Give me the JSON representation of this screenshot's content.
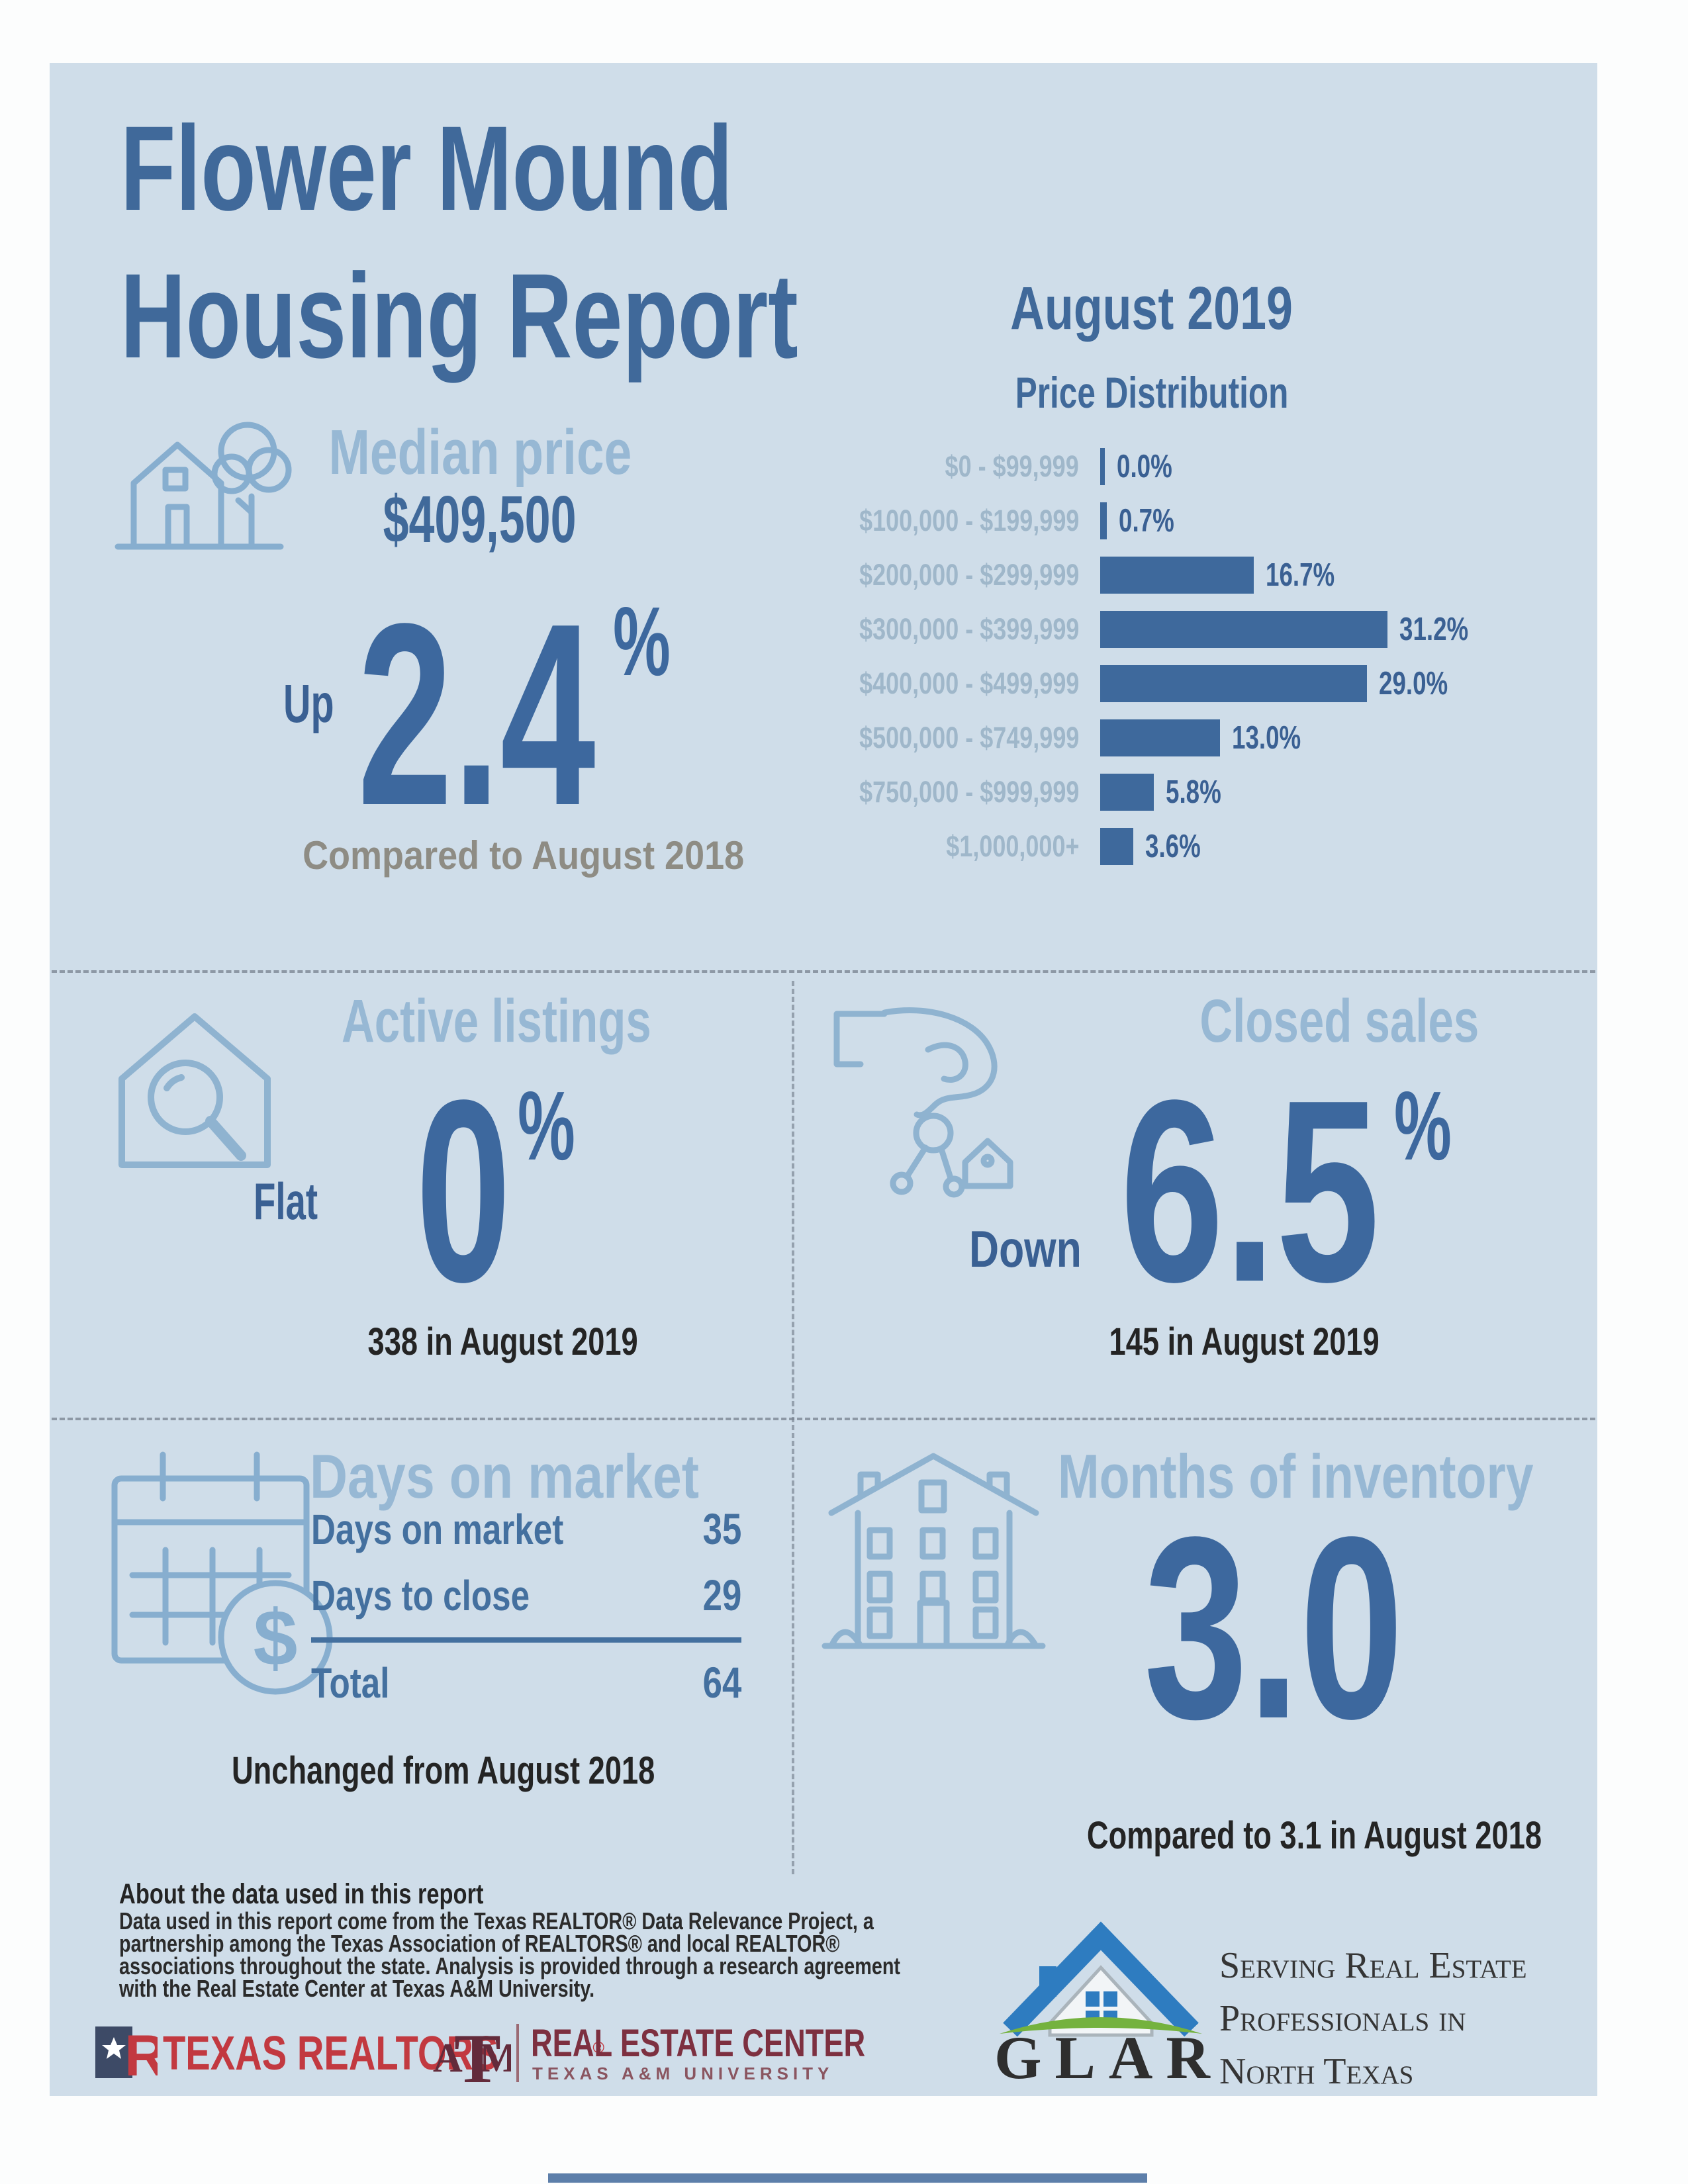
{
  "colors": {
    "panel_bg": "#cfdde9",
    "title_blue": "#40699a",
    "header_light_blue": "#97b8d4",
    "bar_blue": "#3e699c",
    "value_blue": "#3a6093",
    "table_blue": "#44709f",
    "dark_text": "#242424",
    "gray_text": "#8e8c84",
    "realtor_red": "#c23940",
    "am_maroon": "#7d3040",
    "glar_blue": "#2e7cc0",
    "glar_green": "#74b23e"
  },
  "title": {
    "line1": "Flower Mound",
    "line2": "Housing Report"
  },
  "report": {
    "month": "August 2019",
    "chart_title": "Price Distribution"
  },
  "chart_data": {
    "type": "bar",
    "orientation": "horizontal",
    "title": "Price Distribution",
    "subtitle": "August 2019",
    "categories": [
      "$0 - $99,999",
      "$100,000 - $199,999",
      "$200,000 - $299,999",
      "$300,000 - $399,999",
      "$400,000 - $499,999",
      "$500,000 - $749,999",
      "$750,000 - $999,999",
      "$1,000,000+"
    ],
    "values": [
      0.0,
      0.7,
      16.7,
      31.2,
      29.0,
      13.0,
      5.8,
      3.6
    ],
    "value_labels": [
      "0.0%",
      "0.7%",
      "16.7%",
      "31.2%",
      "29.0%",
      "13.0%",
      "5.8%",
      "3.6%"
    ],
    "unit": "%",
    "xlim": [
      0,
      35
    ],
    "grid": false,
    "legend": "none",
    "bar_color": "#3e699c"
  },
  "median_price": {
    "label": "Median price",
    "value": "$409,500",
    "direction": "Up",
    "change": "2.4",
    "percent_sign": "%",
    "compare": "Compared to August 2018"
  },
  "active_listings": {
    "label": "Active listings",
    "direction": "Flat",
    "change": "0",
    "percent_sign": "%",
    "count": "338 in August 2019"
  },
  "closed_sales": {
    "label": "Closed sales",
    "direction": "Down",
    "change": "6.5",
    "percent_sign": "%",
    "count": "145 in August 2019"
  },
  "days_on_market": {
    "label": "Days on market",
    "rows": [
      {
        "label": "Days on market",
        "value": "35"
      },
      {
        "label": "Days to close",
        "value": "29"
      }
    ],
    "total": {
      "label": "Total",
      "value": "64"
    },
    "compare": "Unchanged from August 2018"
  },
  "months_of_inventory": {
    "label": "Months of inventory",
    "value": "3.0",
    "compare": "Compared to 3.1 in August 2018"
  },
  "about": {
    "heading": "About the data used in this report",
    "body": "Data used in this report come from the Texas REALTOR® Data Relevance Project, a\npartnership among the Texas Association of REALTORS® and local REALTOR®\nassociations throughout the state. Analysis is provided through a research agreement\nwith the Real Estate Center at Texas A&M University."
  },
  "footer": {
    "texas_realtors": "TEXAS REALTORS",
    "texas_realtors_reg": "®",
    "rec_line1": "REAL ESTATE CENTER",
    "rec_line2": "TEXAS A&M UNIVERSITY",
    "am_a": "A",
    "am_t": "T",
    "am_m": "M",
    "glar_name": "GLAR",
    "glar_tagline": "Serving Real Estate\nProfessionals in\nNorth Texas"
  }
}
